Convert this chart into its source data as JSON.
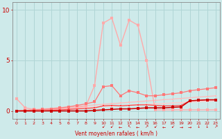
{
  "x": [
    0,
    1,
    2,
    3,
    4,
    5,
    6,
    7,
    8,
    9,
    10,
    11,
    12,
    13,
    14,
    15,
    16,
    17,
    18,
    19,
    20,
    21,
    22,
    23
  ],
  "line_pink": [
    1.2,
    0.3,
    0.15,
    0.1,
    0.15,
    0.2,
    0.25,
    0.35,
    0.5,
    2.5,
    8.7,
    9.2,
    6.5,
    9.0,
    8.5,
    5.0,
    0.1,
    0.1,
    0.1,
    0.1,
    0.1,
    0.1,
    0.1,
    0.1
  ],
  "line_salmon": [
    0.0,
    0.05,
    0.1,
    0.15,
    0.2,
    0.3,
    0.4,
    0.55,
    0.7,
    0.9,
    2.4,
    2.5,
    1.5,
    2.0,
    1.8,
    1.5,
    1.5,
    1.6,
    1.7,
    1.8,
    2.0,
    2.1,
    2.2,
    2.3
  ],
  "line_red": [
    0.0,
    0.0,
    0.0,
    0.0,
    0.05,
    0.1,
    0.15,
    0.2,
    0.25,
    0.3,
    0.5,
    0.55,
    0.5,
    0.55,
    0.6,
    0.6,
    0.55,
    0.5,
    0.5,
    0.55,
    1.0,
    1.05,
    1.1,
    1.1
  ],
  "line_darkred": [
    0.0,
    0.0,
    0.0,
    0.0,
    0.0,
    0.0,
    0.0,
    0.0,
    0.0,
    0.05,
    0.1,
    0.15,
    0.2,
    0.2,
    0.25,
    0.3,
    0.3,
    0.3,
    0.35,
    0.4,
    1.0,
    1.05,
    1.1,
    1.1
  ],
  "line_linear1": [
    0.0,
    0.04,
    0.09,
    0.13,
    0.17,
    0.22,
    0.26,
    0.3,
    0.35,
    0.39,
    0.43,
    0.48,
    0.52,
    0.57,
    0.61,
    0.65,
    0.7,
    0.74,
    0.78,
    0.83,
    0.87,
    0.91,
    0.96,
    1.0
  ],
  "line_linear2": [
    0.0,
    0.07,
    0.13,
    0.2,
    0.26,
    0.33,
    0.39,
    0.46,
    0.52,
    0.59,
    0.65,
    0.72,
    0.78,
    0.85,
    0.91,
    0.98,
    1.04,
    1.11,
    1.17,
    1.24,
    1.3,
    1.37,
    1.43,
    1.5
  ],
  "bg_color": "#ceeaea",
  "grid_color": "#b0d5d5",
  "color_pink": "#ffaaaa",
  "color_salmon": "#ff7777",
  "color_red": "#ff4444",
  "color_darkred": "#cc0000",
  "color_linear1": "#ffcccc",
  "color_linear2": "#ffbbbb",
  "xlabel": "Vent moyen/en rafales ( km/h )",
  "yticks": [
    0,
    5,
    10
  ],
  "xlim": [
    -0.5,
    23.5
  ],
  "ylim": [
    -0.8,
    10.8
  ],
  "tick_color": "#cc0000",
  "arrow_labels": [
    "↙",
    "↙",
    "←",
    "↖",
    "←",
    "↗",
    "↙",
    "←",
    "↙",
    "→",
    "→",
    "↓",
    "↓",
    "↗"
  ]
}
